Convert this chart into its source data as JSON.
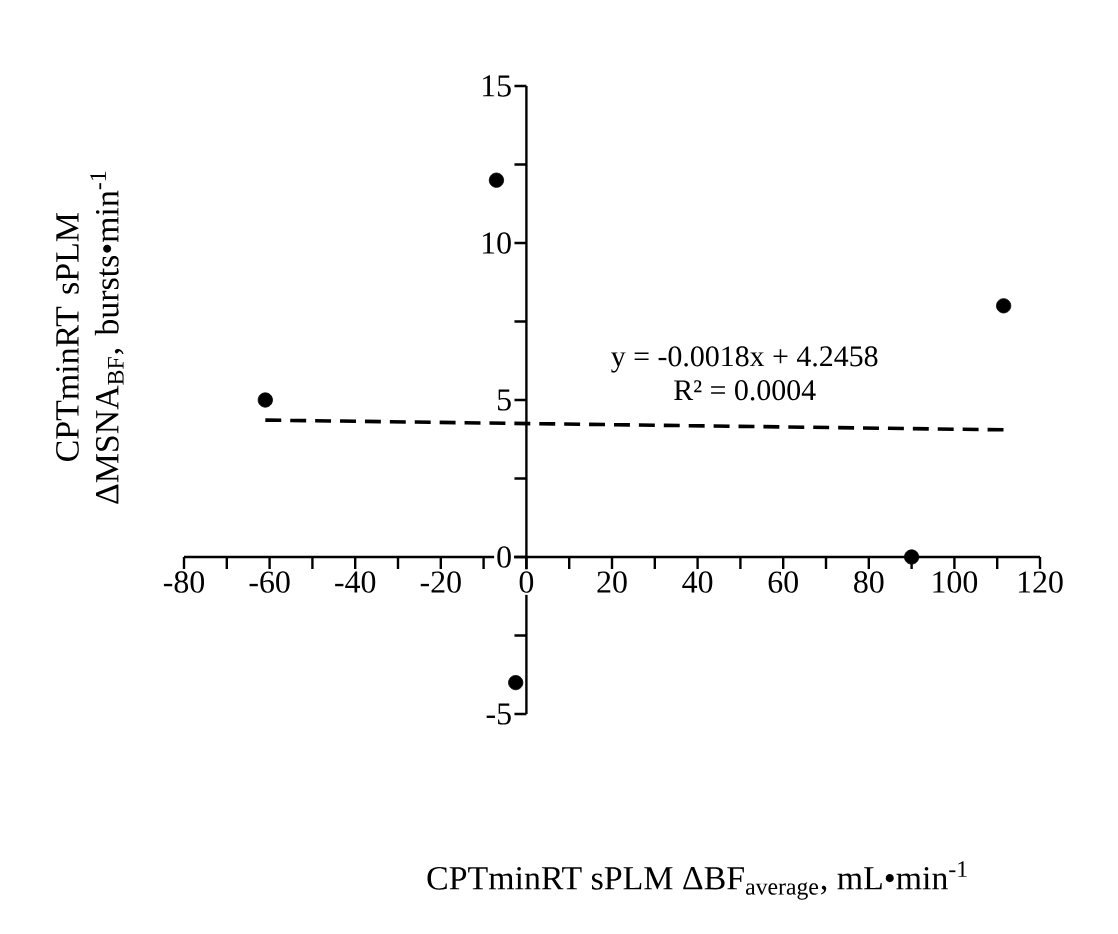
{
  "chart_data": {
    "type": "scatter",
    "xlabel": "CPTminRT sPLM ΔBF$_{average}$, mL•min$^{-1}$",
    "ylabel": "CPTminRT sPLM ΔMSNA$_{BF}$, bursts•min$^{-1}$",
    "xlim": [
      -80,
      120
    ],
    "ylim": [
      -5,
      15
    ],
    "xticks": [
      -80,
      {
        "value": -70,
        "label": null
      },
      -60,
      {
        "value": -50,
        "label": null
      },
      -40,
      {
        "value": -30,
        "label": null
      },
      -20,
      {
        "value": -10,
        "label": null
      },
      0,
      {
        "value": 10,
        "label": null
      },
      20,
      {
        "value": 30,
        "label": null
      },
      40,
      {
        "value": 50,
        "label": null
      },
      60,
      {
        "value": 70,
        "label": null
      },
      80,
      {
        "value": 90,
        "label": null
      },
      100,
      {
        "value": 110,
        "label": null
      },
      120
    ],
    "yticks": [
      -5,
      {
        "value": -2.5,
        "label": null
      },
      0,
      {
        "value": 2.5,
        "label": null
      },
      5,
      {
        "value": 7.5,
        "label": null
      },
      10,
      {
        "value": 12.5,
        "label": null
      },
      15
    ],
    "annotations": [
      "y = -0.0018x + 4.2458",
      "R² = 0.0004"
    ],
    "series": [
      {
        "marker": "circle",
        "color": "#000000",
        "x": [
          -61,
          -7,
          111.5,
          90,
          -2.5
        ],
        "values": [
          5,
          12,
          8,
          0,
          -4
        ]
      },
      {
        "type": "line",
        "color": "#000000",
        "line_style": "dashed",
        "x": [
          -61,
          111.5
        ],
        "values": [
          4.36,
          4.05
        ]
      }
    ]
  }
}
